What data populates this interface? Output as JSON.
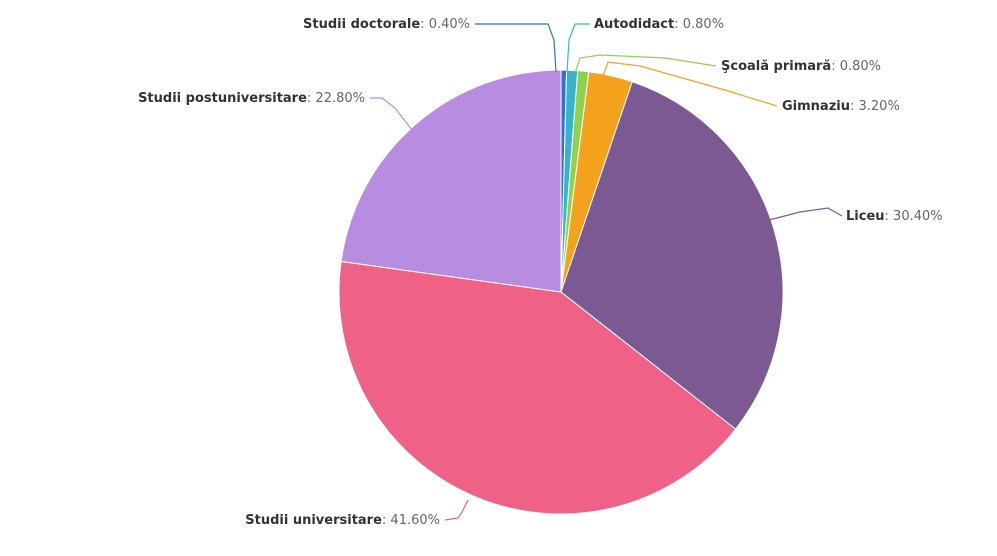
{
  "chart_data": {
    "type": "pie",
    "slices": [
      {
        "name": "Studii doctorale",
        "value": 0.4,
        "value_label": "0.40%",
        "color": "#2f6fd6"
      },
      {
        "name": "Autodidact",
        "value": 0.8,
        "value_label": "0.80%",
        "color": "#37b5c8"
      },
      {
        "name": "Şcoală primară",
        "value": 0.8,
        "value_label": "0.80%",
        "color": "#8fd14f"
      },
      {
        "name": "Gimnaziu",
        "value": 3.2,
        "value_label": "3.20%",
        "color": "#f4a21c"
      },
      {
        "name": "Liceu",
        "value": 30.4,
        "value_label": "30.40%",
        "color": "#7b5a94"
      },
      {
        "name": "Studii universitare",
        "value": 41.6,
        "value_label": "41.60%",
        "color": "#ef6186"
      },
      {
        "name": "Studii postuniversitare",
        "value": 22.8,
        "value_label": "22.80%",
        "color": "#b88ce0"
      }
    ],
    "start": "top",
    "direction": "clockwise"
  }
}
